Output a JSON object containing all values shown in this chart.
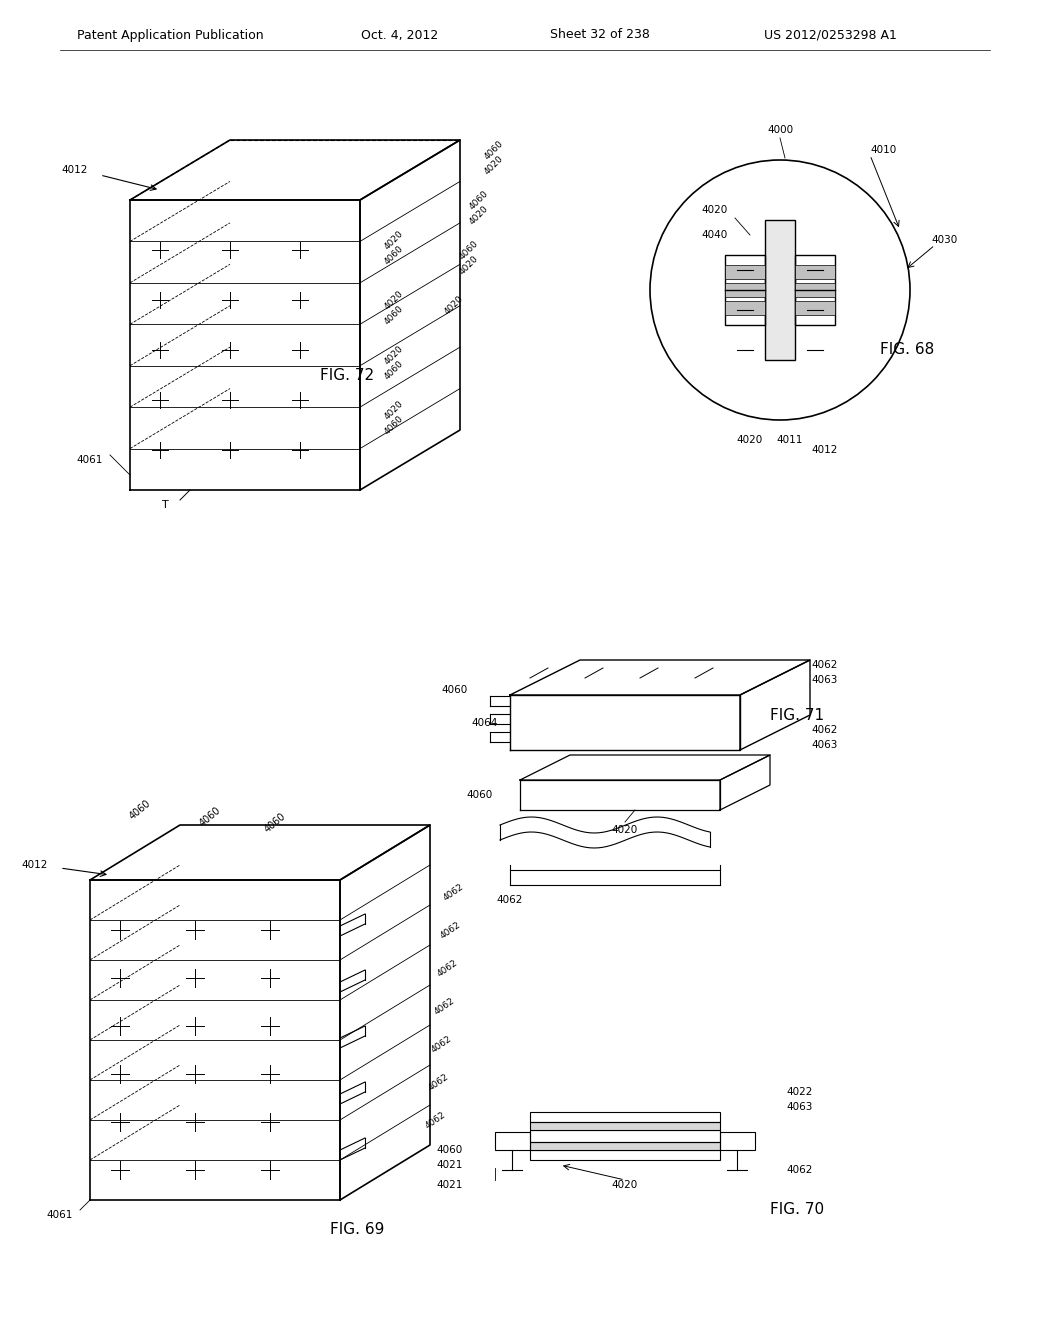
{
  "bg_color": "#ffffff",
  "header_left": "Patent Application Publication",
  "header_center": "Oct. 4, 2012",
  "header_right_sheet": "Sheet 32 of 238",
  "header_right_patent": "US 2012/0253298 A1",
  "fig72_label": "FIG. 72",
  "fig68_label": "FIG. 68",
  "fig71_label": "FIG. 71",
  "fig69_label": "FIG. 69",
  "fig70_label": "FIG. 70",
  "header_font_size": 9,
  "label_font_size": 10,
  "fig_label_font_size": 11,
  "ref_font_size": 7.5,
  "line_color": "#000000",
  "line_width": 0.8
}
